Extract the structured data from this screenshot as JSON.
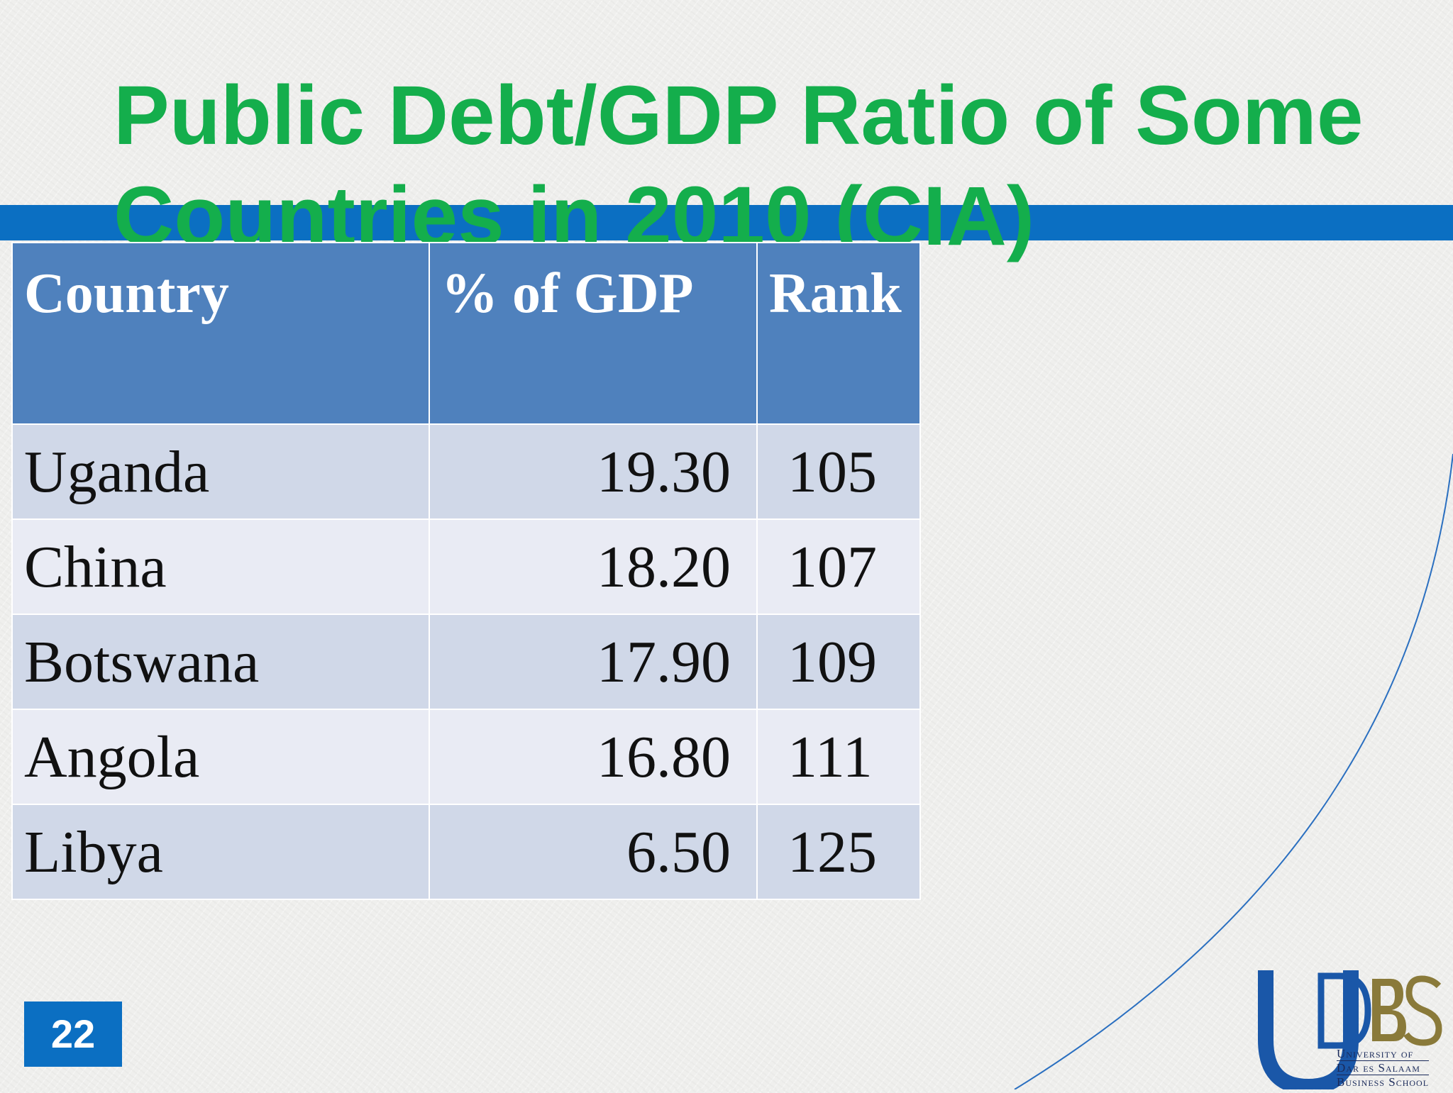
{
  "slide": {
    "title": "Public Debt/GDP Ratio of Some Countries in 2010 (CIA)",
    "page_number": "22"
  },
  "table": {
    "headers": [
      "Country",
      "% of GDP",
      "Rank"
    ],
    "rows": [
      {
        "country": "Uganda",
        "pct_gdp": "19.30",
        "rank": "105"
      },
      {
        "country": "China",
        "pct_gdp": "18.20",
        "rank": "107"
      },
      {
        "country": "Botswana",
        "pct_gdp": "17.90",
        "rank": "109"
      },
      {
        "country": "Angola",
        "pct_gdp": "16.80",
        "rank": "111"
      },
      {
        "country": "Libya",
        "pct_gdp": "6.50",
        "rank": "125"
      }
    ]
  },
  "logo": {
    "letters": "UDBS",
    "line1": "University of",
    "line2": "Dar es Salaam",
    "line3": "Business School"
  },
  "colors": {
    "title": "#14ae4c",
    "band": "#0b6fc2",
    "header_bg": "#4f81bd",
    "row_odd": "#d0d8e8",
    "row_even": "#e9ebf4"
  }
}
